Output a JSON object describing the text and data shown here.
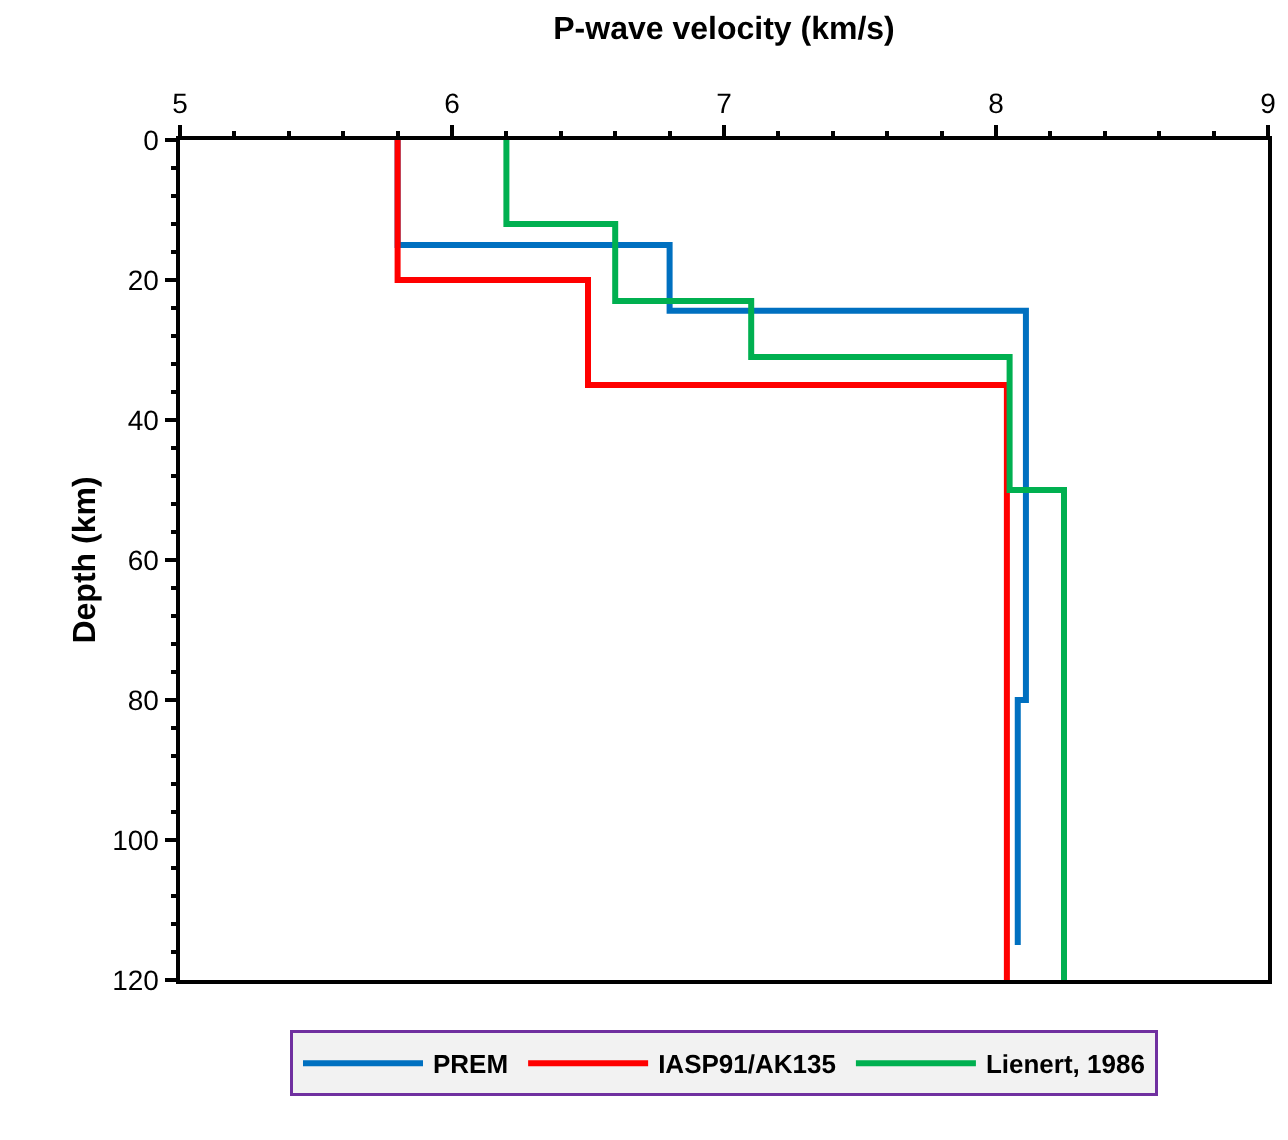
{
  "chart_data": {
    "type": "line",
    "xlabel": "P-wave velocity (km/s)",
    "ylabel": "Depth (km)",
    "xlim": [
      5,
      9
    ],
    "xticks": [
      5,
      6,
      7,
      8,
      9
    ],
    "ylim": [
      120,
      0
    ],
    "yticks": [
      0,
      20,
      40,
      60,
      80,
      100,
      120
    ],
    "grid": false,
    "legend": "bottom",
    "marker": "none",
    "line_style": "solid",
    "series": [
      {
        "name": "PREM",
        "color": "#0070c0",
        "x": [
          5.8,
          5.8,
          6.8,
          6.8,
          8.11,
          8.11,
          8.08,
          8.08
        ],
        "values": [
          0,
          15,
          15,
          24.4,
          24.4,
          80,
          80,
          115
        ]
      },
      {
        "name": "IASP91/AK135",
        "color": "#ff0000",
        "x": [
          5.8,
          5.8,
          6.5,
          6.5,
          8.04,
          8.04
        ],
        "values": [
          0,
          20,
          20,
          35,
          35,
          120
        ]
      },
      {
        "name": "Lienert, 1986",
        "color": "#00b050",
        "x": [
          6.2,
          6.2,
          6.6,
          6.6,
          7.1,
          7.1,
          8.05,
          8.05,
          8.25,
          8.25
        ],
        "values": [
          0,
          12,
          12,
          23,
          23,
          31,
          31,
          50,
          50,
          120
        ]
      }
    ]
  }
}
